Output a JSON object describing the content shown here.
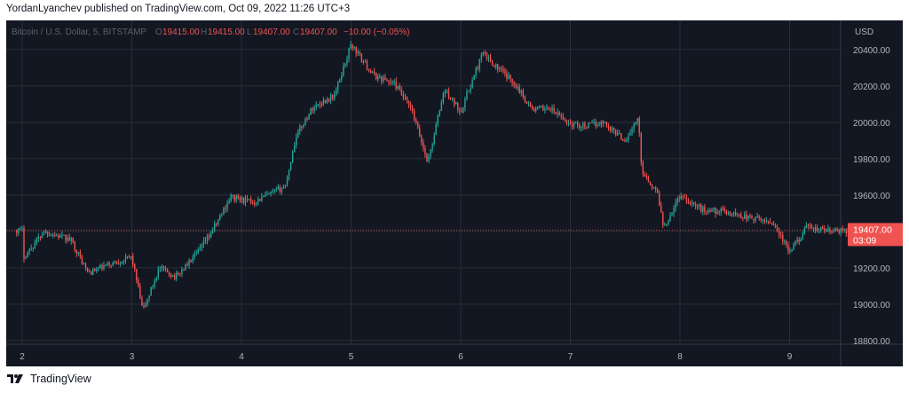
{
  "header": {
    "publish_line": "YordanLyanchev published on TradingView.com, Oct 09, 2022 11:26 UTC+3"
  },
  "footer": {
    "brand": "TradingView",
    "logo_icon": "tradingview-logo-icon"
  },
  "chart": {
    "symbol_label": "Bitcoin / U.S. Dollar, 5, BITSTAMP",
    "ohlc": {
      "o_label": "O",
      "o_value": "19415.00",
      "h_label": "H",
      "h_value": "19415.00",
      "l_label": "L",
      "l_value": "19407.00",
      "c_label": "C",
      "c_value": "19407.00",
      "change": "−10.00 (−0.05%)"
    },
    "currency": "USD",
    "price_tag": {
      "price": "19407.00",
      "countdown": "03:09"
    },
    "colors": {
      "background": "#131722",
      "up": "#26a69a",
      "down": "#ef5350",
      "grid": "#2a2e39",
      "text": "#b2b5be"
    }
  },
  "chart_data": {
    "type": "candlestick",
    "interval": "5",
    "exchange": "BITSTAMP",
    "title": "Bitcoin / U.S. Dollar, 5, BITSTAMP",
    "y_unit": "USD",
    "ylim": [
      18780,
      20560
    ],
    "y_ticks": [
      18800,
      19000,
      19200,
      19400,
      19600,
      19800,
      20000,
      20200,
      20400
    ],
    "x_ticks": [
      "2",
      "3",
      "4",
      "5",
      "6",
      "7",
      "8",
      "9"
    ],
    "grid": true,
    "last_price": 19407,
    "series_points": [
      [
        "2",
        19250
      ],
      [
        "2.2",
        19400
      ],
      [
        "2.45",
        19350
      ],
      [
        "2.6",
        19170
      ],
      [
        "2.8",
        19220
      ],
      [
        "3",
        19260
      ],
      [
        "3.1",
        18960
      ],
      [
        "3.25",
        19200
      ],
      [
        "3.4",
        19150
      ],
      [
        "3.6",
        19280
      ],
      [
        "3.75",
        19420
      ],
      [
        "3.9",
        19590
      ],
      [
        "4.1",
        19560
      ],
      [
        "4.25",
        19600
      ],
      [
        "4.4",
        19650
      ],
      [
        "4.5",
        19930
      ],
      [
        "4.65",
        20080
      ],
      [
        "4.85",
        20150
      ],
      [
        "5",
        20430
      ],
      [
        "5.2",
        20260
      ],
      [
        "5.4",
        20210
      ],
      [
        "5.55",
        20070
      ],
      [
        "5.7",
        19780
      ],
      [
        "5.85",
        20180
      ],
      [
        "6",
        20060
      ],
      [
        "6.2",
        20380
      ],
      [
        "6.35",
        20290
      ],
      [
        "6.5",
        20210
      ],
      [
        "6.65",
        20070
      ],
      [
        "6.8",
        20080
      ],
      [
        "7",
        19990
      ],
      [
        "7.15",
        19980
      ],
      [
        "7.3",
        20000
      ],
      [
        "7.5",
        19900
      ],
      [
        "7.62",
        20020
      ],
      [
        "7.65",
        19740
      ],
      [
        "7.8",
        19600
      ],
      [
        "7.85",
        19420
      ],
      [
        "8",
        19600
      ],
      [
        "8.2",
        19520
      ],
      [
        "8.4",
        19510
      ],
      [
        "8.6",
        19480
      ],
      [
        "8.85",
        19450
      ],
      [
        "9",
        19280
      ],
      [
        "9.15",
        19420
      ],
      [
        "9.4",
        19400
      ],
      [
        "9.55",
        19407
      ]
    ],
    "legend": {
      "open": 19415.0,
      "high": 19415.0,
      "low": 19407.0,
      "close": 19407.0,
      "change": -10.0,
      "change_pct": -0.05
    }
  }
}
